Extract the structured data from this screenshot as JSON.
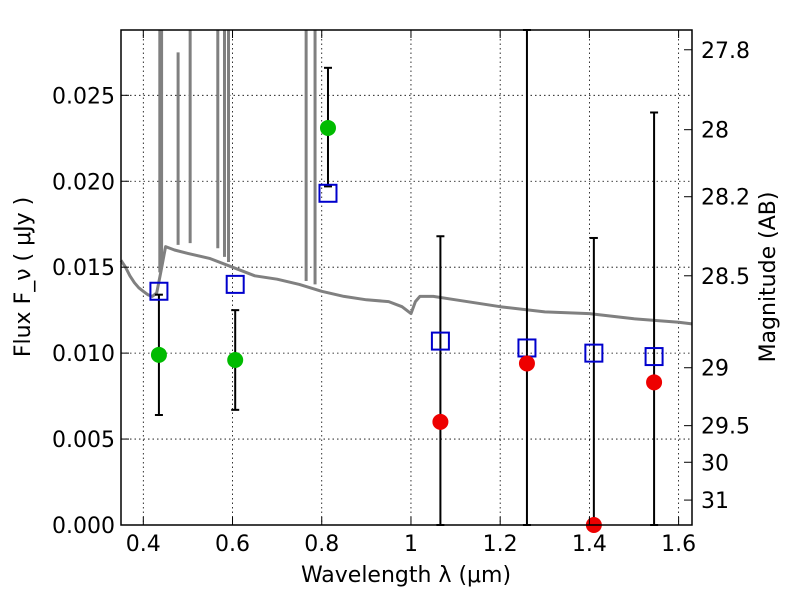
{
  "chart_data": {
    "type": "scatter",
    "title": "",
    "xlabel": "Wavelength  λ (μm)",
    "ylabel": "Flux  F_ν  ( μJy )",
    "ylabel_right": "Magnitude (AB)",
    "xlim": [
      0.35,
      1.63
    ],
    "ylim": [
      0.0,
      0.0288
    ],
    "grid": true,
    "x_ticks": [
      0.4,
      0.6,
      0.8,
      1.0,
      1.2,
      1.4,
      1.6
    ],
    "x_tick_labels": [
      "0.4",
      "0.6",
      "0.8",
      "1",
      "1.2",
      "1.4",
      "1.6"
    ],
    "y_ticks": [
      0.0,
      0.005,
      0.01,
      0.015,
      0.02,
      0.025
    ],
    "y_tick_labels": [
      "0.000",
      "0.005",
      "0.010",
      "0.015",
      "0.020",
      "0.025"
    ],
    "right_ticks": [
      {
        "label": "27.8",
        "flux": 0.02765
      },
      {
        "label": "28",
        "flux": 0.023
      },
      {
        "label": "28.2",
        "flux": 0.0191
      },
      {
        "label": "28.5",
        "flux": 0.0145
      },
      {
        "label": "29",
        "flux": 0.00915
      },
      {
        "label": "29.5",
        "flux": 0.00578
      },
      {
        "label": "30",
        "flux": 0.00365
      },
      {
        "label": "31",
        "flux": 0.00145
      }
    ],
    "series": [
      {
        "name": "model spectrum",
        "kind": "line",
        "color": "#808080",
        "x": [
          0.35,
          0.36,
          0.37,
          0.38,
          0.39,
          0.4,
          0.41,
          0.42,
          0.43,
          0.44,
          0.45,
          0.47,
          0.5,
          0.55,
          0.6,
          0.65,
          0.7,
          0.75,
          0.8,
          0.85,
          0.9,
          0.95,
          0.98,
          1.0,
          1.01,
          1.02,
          1.05,
          1.1,
          1.2,
          1.3,
          1.4,
          1.5,
          1.6,
          1.63
        ],
        "y": [
          0.0154,
          0.015,
          0.0145,
          0.0141,
          0.0138,
          0.0136,
          0.0134,
          0.0133,
          0.0135,
          0.0148,
          0.0162,
          0.016,
          0.0158,
          0.0155,
          0.015,
          0.0145,
          0.0143,
          0.014,
          0.0136,
          0.0133,
          0.0131,
          0.013,
          0.0127,
          0.0123,
          0.013,
          0.0133,
          0.0133,
          0.0131,
          0.0127,
          0.0124,
          0.0123,
          0.012,
          0.0118,
          0.0117
        ]
      },
      {
        "name": "emission lines",
        "kind": "spikes",
        "color": "#808080",
        "x": [
          0.437,
          0.441,
          0.478,
          0.505,
          0.567,
          0.582,
          0.591,
          0.765,
          0.785
        ],
        "base": [
          0.0147,
          0.015,
          0.0163,
          0.0164,
          0.0161,
          0.0156,
          0.0153,
          0.0142,
          0.014
        ],
        "top": [
          0.0288,
          0.0288,
          0.0275,
          0.0288,
          0.0288,
          0.0288,
          0.0288,
          0.0288,
          0.0288
        ]
      },
      {
        "name": "model photometry",
        "kind": "square",
        "color": "#0000cc",
        "x": [
          0.435,
          0.606,
          0.814,
          1.066,
          1.26,
          1.41,
          1.545
        ],
        "y": [
          0.0136,
          0.014,
          0.0193,
          0.0107,
          0.0103,
          0.01,
          0.0098
        ]
      },
      {
        "name": "detections",
        "kind": "circle",
        "color": "#00bb00",
        "x": [
          0.435,
          0.606,
          0.814
        ],
        "y": [
          0.0099,
          0.0096,
          0.0231
        ],
        "err_low": [
          0.0064,
          0.0067,
          0.0197
        ],
        "err_high": [
          0.0134,
          0.0125,
          0.0266
        ]
      },
      {
        "name": "non-detections",
        "kind": "circle",
        "color": "#ee0000",
        "x": [
          1.066,
          1.26,
          1.41,
          1.545
        ],
        "y": [
          0.006,
          0.0094,
          0.0,
          0.0083
        ],
        "err_low": [
          0.0,
          0.0,
          0.0,
          0.0
        ],
        "err_high": [
          0.0168,
          0.0288,
          0.0167,
          0.024
        ]
      }
    ]
  }
}
